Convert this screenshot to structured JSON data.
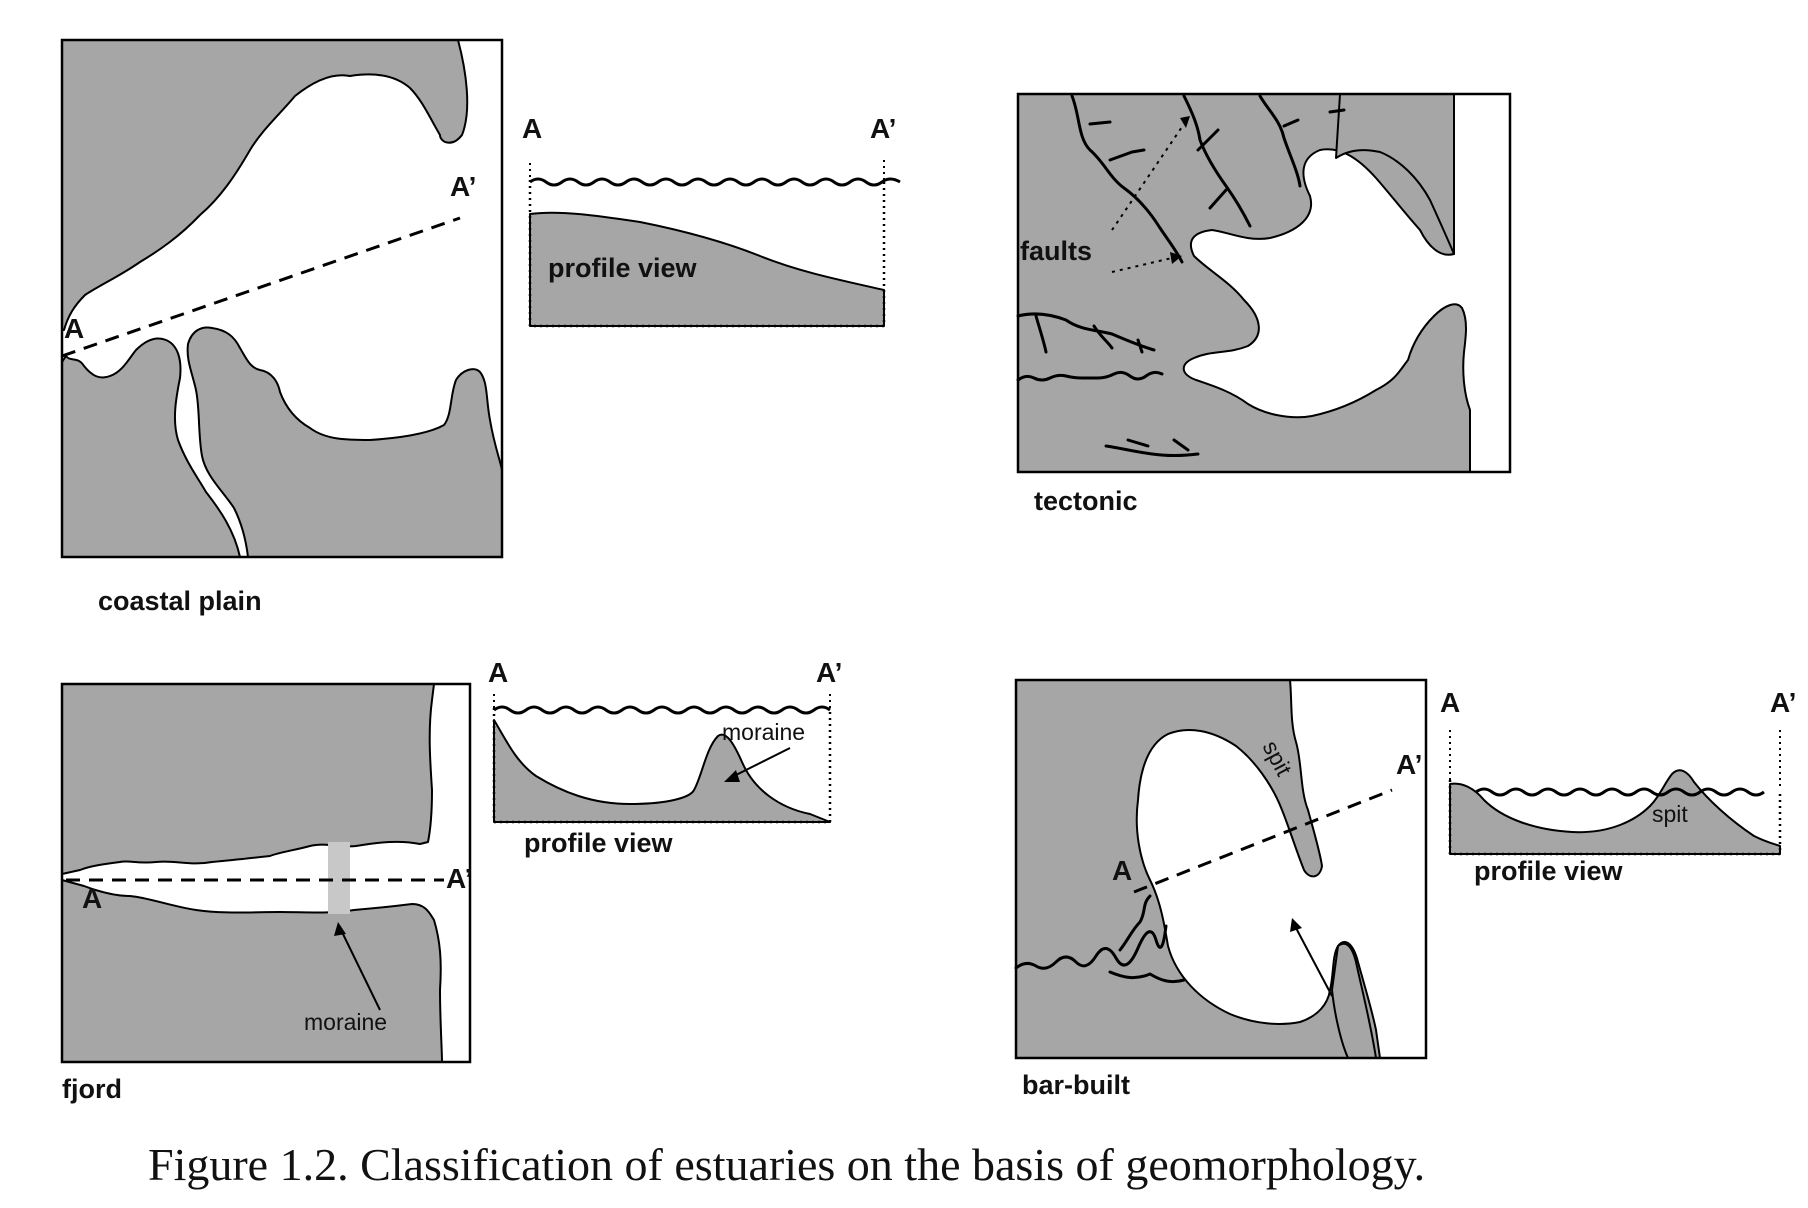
{
  "panels": {
    "coastal_plain": {
      "label": "coastal plain",
      "point_a": "A",
      "point_a_prime": "A’",
      "profile_label": "profile view",
      "profile_a": "A",
      "profile_a_prime": "A’"
    },
    "tectonic": {
      "label": "tectonic",
      "faults_label": "faults"
    },
    "fjord": {
      "label": "fjord",
      "point_a": "A",
      "point_a_prime": "A’",
      "moraine_label": "moraine",
      "profile_label": "profile view",
      "profile_a": "A",
      "profile_a_prime": "A’",
      "profile_moraine_label": "moraine"
    },
    "bar_built": {
      "label": "bar-built",
      "point_a": "A",
      "point_a_prime": "A’",
      "spit_label": "spit",
      "profile_label": "profile view",
      "profile_a": "A",
      "profile_a_prime": "A’",
      "profile_spit_label": "spit"
    }
  },
  "caption": "Figure 1.2. Classification of estuaries on the basis of geomorphology.",
  "colors": {
    "land": "#a6a6a6",
    "water": "#ffffff",
    "outline": "#000000"
  }
}
